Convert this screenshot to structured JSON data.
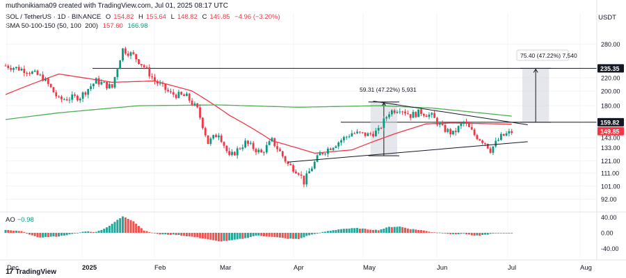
{
  "header": {
    "credit": "muthonikiama09 created with TradingView.com, Jul 01, 2025 08:17 UTC",
    "symbol": "SOL / TetherUS · 1D · BINANCE",
    "open_label": "O",
    "open": "154.82",
    "high_label": "H",
    "high": "155.64",
    "low_label": "L",
    "low": "148.82",
    "close_label": "C",
    "close": "149.85",
    "change": "−4.96 (−3.20%)",
    "sma_label": "SMA 50-100-150 (50, 100, 200)",
    "sma_a": "157.60",
    "sma_b": "166.98",
    "currency": "USDT"
  },
  "ao": {
    "label": "AO",
    "value": "−0.98"
  },
  "branding": {
    "logo_text": "TradingView",
    "logo_mark": "17"
  },
  "annotations": {
    "measure_left": "59.31 (47.22%) 5,931",
    "measure_right": "75.40 (47.22%) 7,540"
  },
  "price_badges": {
    "level_upper": "235.35",
    "level_mid": "159.82",
    "last_price": "149.85"
  },
  "colors": {
    "up": "#089981",
    "down": "#f23645",
    "sma_red": "#f23645",
    "sma_green": "#4caf50",
    "ao_up": "#26a69a",
    "ao_down": "#ef5350"
  },
  "chart_data": {
    "type": "candlestick",
    "y_scale": "log",
    "ylim": [
      86,
      315
    ],
    "y_ticks": [
      "280.00",
      "220.00",
      "200.00",
      "180.00",
      "143.00",
      "133.00",
      "121.00",
      "111.00",
      "101.00",
      "92.00"
    ],
    "x_tick_labels": [
      "Dec",
      "2025",
      "Feb",
      "Mar",
      "Apr",
      "May",
      "Jun",
      "Jul",
      "Aug"
    ],
    "price_waypoints": [
      [
        0,
        240
      ],
      [
        8,
        232
      ],
      [
        14,
        220
      ],
      [
        20,
        188
      ],
      [
        28,
        192
      ],
      [
        34,
        215
      ],
      [
        40,
        205
      ],
      [
        44,
        270
      ],
      [
        48,
        258
      ],
      [
        52,
        238
      ],
      [
        56,
        215
      ],
      [
        62,
        196
      ],
      [
        68,
        192
      ],
      [
        72,
        175
      ],
      [
        76,
        138
      ],
      [
        80,
        148
      ],
      [
        84,
        124
      ],
      [
        90,
        138
      ],
      [
        96,
        128
      ],
      [
        100,
        140
      ],
      [
        106,
        118
      ],
      [
        110,
        112
      ],
      [
        112,
        104
      ],
      [
        114,
        112
      ],
      [
        118,
        127
      ],
      [
        124,
        137
      ],
      [
        130,
        148
      ],
      [
        136,
        146
      ],
      [
        140,
        150
      ],
      [
        144,
        172
      ],
      [
        148,
        177
      ],
      [
        152,
        168
      ],
      [
        156,
        172
      ],
      [
        160,
        167
      ],
      [
        164,
        153
      ],
      [
        168,
        147
      ],
      [
        172,
        160
      ],
      [
        176,
        146
      ],
      [
        180,
        138
      ],
      [
        182,
        131
      ],
      [
        186,
        144
      ],
      [
        190,
        149
      ]
    ],
    "sma_series": [
      {
        "key": "sma_red",
        "values": [
          [
            0,
            195
          ],
          [
            20,
            226
          ],
          [
            40,
            213
          ],
          [
            56,
            215
          ],
          [
            70,
            200
          ],
          [
            84,
            168
          ],
          [
            100,
            140
          ],
          [
            116,
            128
          ],
          [
            130,
            131
          ],
          [
            146,
            147
          ],
          [
            158,
            158
          ],
          [
            168,
            159
          ],
          [
            190,
            157.6
          ]
        ]
      },
      {
        "key": "sma_green",
        "values": [
          [
            0,
            163
          ],
          [
            20,
            171
          ],
          [
            50,
            180
          ],
          [
            80,
            181
          ],
          [
            110,
            178
          ],
          [
            140,
            180
          ],
          [
            160,
            177
          ],
          [
            175,
            172
          ],
          [
            190,
            167
          ]
        ]
      }
    ],
    "horizontal_levels": [
      235.35,
      159.82
    ],
    "trendlines": [
      {
        "from": [
          106,
          120
        ],
        "to": [
          196,
          139
        ]
      },
      {
        "from": [
          138,
          186
        ],
        "to": [
          196,
          157
        ]
      }
    ],
    "measure_boxes": [
      {
        "x0": 137,
        "x1": 147,
        "y0": 125.6,
        "y1": 184.9
      },
      {
        "x0": 194,
        "x1": 204,
        "y0": 159.8,
        "y1": 235.3
      }
    ],
    "ao": {
      "ylim": [
        -48,
        48
      ],
      "y_ticks": [
        "40.00",
        "0.00",
        "-40.00"
      ],
      "waypoints": [
        [
          0,
          7
        ],
        [
          6,
          4
        ],
        [
          12,
          -12
        ],
        [
          20,
          -9
        ],
        [
          26,
          -2
        ],
        [
          30,
          4
        ],
        [
          34,
          2
        ],
        [
          38,
          14
        ],
        [
          44,
          42
        ],
        [
          48,
          30
        ],
        [
          52,
          6
        ],
        [
          58,
          -4
        ],
        [
          64,
          -5
        ],
        [
          70,
          -10
        ],
        [
          74,
          -14
        ],
        [
          80,
          -22
        ],
        [
          84,
          -20
        ],
        [
          90,
          -14
        ],
        [
          94,
          -7
        ],
        [
          100,
          -10
        ],
        [
          106,
          -15
        ],
        [
          110,
          -16
        ],
        [
          114,
          -6
        ],
        [
          120,
          3
        ],
        [
          126,
          10
        ],
        [
          132,
          12
        ],
        [
          136,
          9
        ],
        [
          140,
          7
        ],
        [
          144,
          15
        ],
        [
          148,
          16
        ],
        [
          152,
          10
        ],
        [
          156,
          7
        ],
        [
          160,
          2
        ],
        [
          164,
          0
        ],
        [
          168,
          -4
        ],
        [
          172,
          -2
        ],
        [
          176,
          -8
        ],
        [
          180,
          -5
        ],
        [
          184,
          -1
        ],
        [
          190,
          -1
        ]
      ]
    }
  }
}
